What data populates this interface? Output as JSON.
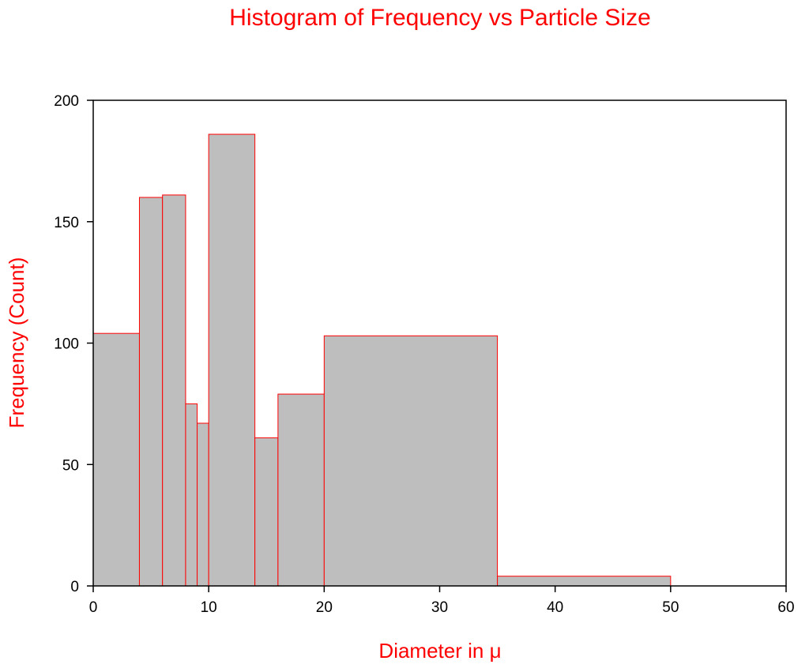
{
  "chart_data": {
    "type": "bar",
    "subtype": "histogram",
    "title": "Histogram of Frequency vs Particle Size",
    "xlabel": "Diameter in μ",
    "ylabel": "Frequency (Count)",
    "xlim": [
      0,
      60
    ],
    "ylim": [
      0,
      200
    ],
    "xticks": [
      0,
      10,
      20,
      30,
      40,
      50,
      60
    ],
    "yticks": [
      0,
      50,
      100,
      150,
      200
    ],
    "grid": false,
    "bins": [
      {
        "from": 0,
        "to": 4,
        "count": 104
      },
      {
        "from": 4,
        "to": 6,
        "count": 160
      },
      {
        "from": 6,
        "to": 8,
        "count": 161
      },
      {
        "from": 8,
        "to": 9,
        "count": 75
      },
      {
        "from": 9,
        "to": 10,
        "count": 67
      },
      {
        "from": 10,
        "to": 14,
        "count": 186
      },
      {
        "from": 14,
        "to": 16,
        "count": 61
      },
      {
        "from": 16,
        "to": 20,
        "count": 79
      },
      {
        "from": 20,
        "to": 35,
        "count": 103
      },
      {
        "from": 35,
        "to": 50,
        "count": 4
      }
    ],
    "colors": {
      "bar_fill": "#bebebe",
      "bar_stroke": "#ff0000",
      "title": "#ff0000",
      "labels": "#ff0000",
      "axis": "#000000"
    }
  }
}
